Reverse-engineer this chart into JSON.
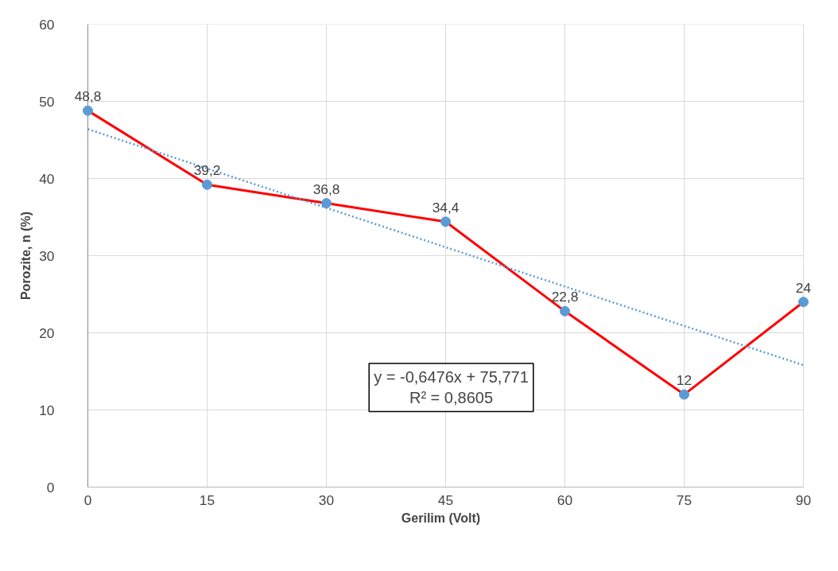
{
  "chart_data": {
    "type": "line",
    "xlabel": "Gerilim (Volt)",
    "ylabel": "Porozite, n (%)",
    "x": [
      0,
      15,
      30,
      45,
      60,
      75,
      90
    ],
    "series": [
      {
        "color": "#ff0000",
        "values": [
          48.8,
          39.2,
          36.8,
          34.4,
          22.8,
          12,
          24
        ],
        "marker": "circle",
        "colors": [
          "#5b9bd5",
          "#5b9bd5",
          "#5b9bd5",
          "#5b9bd5",
          "#5b9bd5",
          "#5b9bd5",
          "#5b9bd5"
        ],
        "line_style": "solid",
        "data_labels": true,
        "value_labels": [
          "48,8",
          "39,2",
          "36,8",
          "34,4",
          "22,8",
          "12",
          "24"
        ]
      },
      {
        "type": "line",
        "x": [
          0,
          90
        ],
        "color": "#5b9bd5",
        "values": [
          46.4,
          15.8
        ],
        "marker": "none",
        "line_style": "dotted"
      }
    ],
    "xlim": [
      0,
      90
    ],
    "xticks": [
      0,
      15,
      30,
      45,
      60,
      75,
      90
    ],
    "ylim": [
      0,
      60
    ],
    "yticks": [
      0,
      10,
      20,
      30,
      40,
      50,
      60
    ],
    "grid": true,
    "annotations": [
      "y = -0,6476x + 75,771\nR² = 0,8605"
    ]
  }
}
